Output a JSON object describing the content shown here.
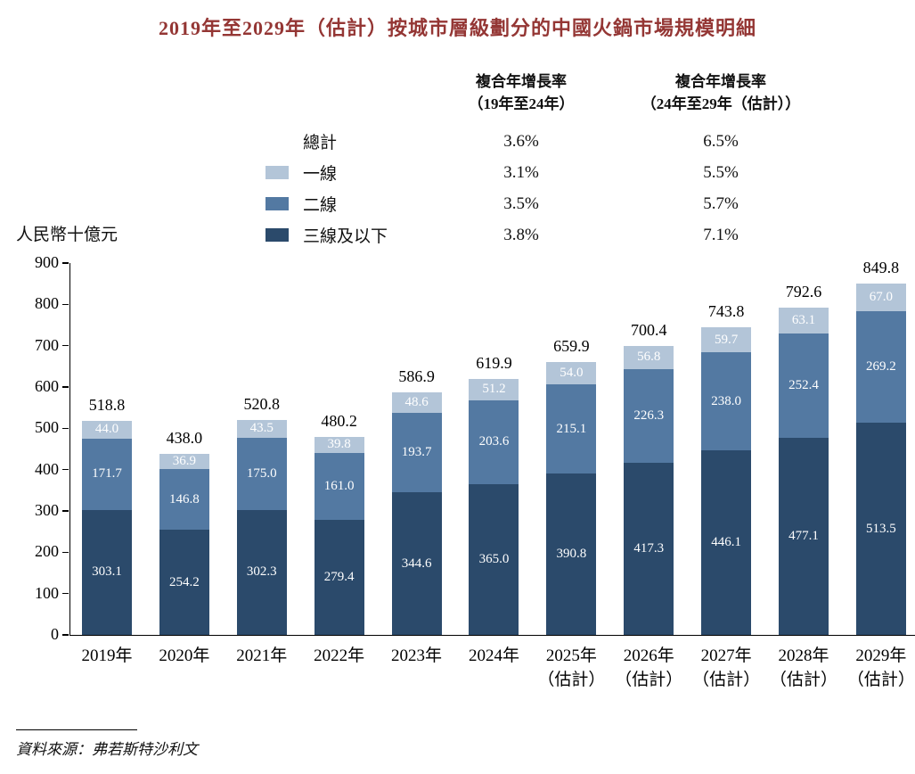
{
  "title": "2019年至2029年（估計）按城市層級劃分的中國火鍋市場規模明細",
  "unit_label": "人民幣十億元",
  "source": "資料來源：弗若斯特沙利文",
  "cagr_table": {
    "headers": [
      {
        "line1": "複合年增長率",
        "line2": "（19年至24年）"
      },
      {
        "line1": "複合年增長率",
        "line2": "（24年至29年（估計））"
      }
    ],
    "rows": [
      {
        "label": "總計",
        "color": null,
        "cagr_19_24": "3.6%",
        "cagr_24_29": "6.5%"
      },
      {
        "label": "一線",
        "color": "#b3c5d8",
        "cagr_19_24": "3.1%",
        "cagr_24_29": "5.5%"
      },
      {
        "label": "二線",
        "color": "#5379a2",
        "cagr_19_24": "3.5%",
        "cagr_24_29": "5.7%"
      },
      {
        "label": "三線及以下",
        "color": "#2b4a6b",
        "cagr_19_24": "3.8%",
        "cagr_24_29": "7.1%"
      }
    ]
  },
  "chart_data": {
    "type": "bar",
    "subtype": "stacked",
    "title": "2019年至2029年（估計）按城市層級劃分的中國火鍋市場規模明細",
    "ylabel": "人民幣十億元",
    "ylim": [
      0,
      900
    ],
    "ytick_step": 100,
    "grid": false,
    "legend_position": "top",
    "categories": [
      {
        "label": "2019年"
      },
      {
        "label": "2020年"
      },
      {
        "label": "2021年"
      },
      {
        "label": "2022年"
      },
      {
        "label": "2023年"
      },
      {
        "label": "2024年"
      },
      {
        "label": "2025年",
        "sublabel": "（估計）"
      },
      {
        "label": "2026年",
        "sublabel": "（估計）"
      },
      {
        "label": "2027年",
        "sublabel": "（估計）"
      },
      {
        "label": "2028年",
        "sublabel": "（估計）"
      },
      {
        "label": "2029年",
        "sublabel": "（估計）"
      }
    ],
    "series": [
      {
        "name": "三線及以下",
        "color": "#2b4a6b",
        "values": [
          303.1,
          254.2,
          302.3,
          279.4,
          344.6,
          365.0,
          390.8,
          417.3,
          446.1,
          477.1,
          513.5
        ]
      },
      {
        "name": "二線",
        "color": "#5379a2",
        "values": [
          171.7,
          146.8,
          175.0,
          161.0,
          193.7,
          203.6,
          215.1,
          226.3,
          238.0,
          252.4,
          269.2
        ]
      },
      {
        "name": "一線",
        "color": "#b3c5d8",
        "values": [
          44.0,
          36.9,
          43.5,
          39.8,
          48.6,
          51.2,
          54.0,
          56.8,
          59.7,
          63.1,
          67.0
        ]
      }
    ],
    "totals": [
      518.8,
      438.0,
      520.8,
      480.2,
      586.9,
      619.9,
      659.9,
      700.4,
      743.8,
      792.6,
      849.8
    ]
  }
}
